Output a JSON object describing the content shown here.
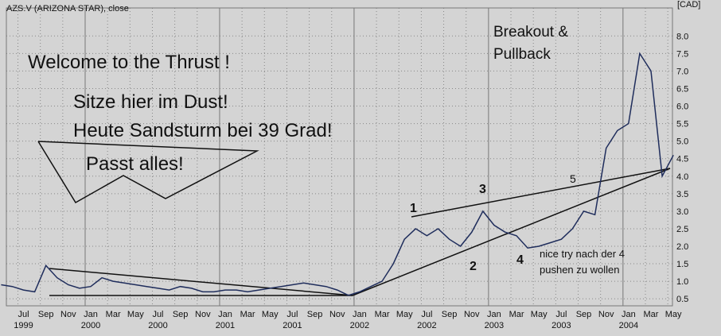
{
  "chart_data": {
    "type": "line",
    "title": "AZS.V (ARIZONA STAR), close",
    "unit_label": "[CAD]",
    "color": "#1f2d5c",
    "grid": true,
    "ylim": [
      0.3,
      8.8
    ],
    "yticks": [
      0.5,
      {
        "value": 1.0,
        "label": "1.0"
      },
      1.5,
      {
        "value": 2.0,
        "label": "2.0"
      },
      2.5,
      {
        "value": 3.0,
        "label": "3.0"
      },
      3.5,
      {
        "value": 4.0,
        "label": "4.0"
      },
      4.5,
      {
        "value": 5.0,
        "label": "5.0"
      },
      5.5,
      {
        "value": 6.0,
        "label": "6.0"
      },
      6.5,
      {
        "value": 7.0,
        "label": "7.0"
      },
      7.5,
      {
        "value": 8.0,
        "label": "8.0"
      }
    ],
    "xticks": [
      {
        "value": "1999-07",
        "label": "Jul"
      },
      {
        "value": "1999-09",
        "label": "Sep"
      },
      {
        "value": "1999-11",
        "label": "Nov"
      },
      {
        "value": "2000-01",
        "label": "Jan"
      },
      {
        "value": "2000-03",
        "label": "Mar"
      },
      {
        "value": "2000-05",
        "label": "May"
      },
      {
        "value": "2000-07",
        "label": "Jul"
      },
      {
        "value": "2000-09",
        "label": "Sep"
      },
      {
        "value": "2000-11",
        "label": "Nov"
      },
      {
        "value": "2001-01",
        "label": "Jan"
      },
      {
        "value": "2001-03",
        "label": "Mar"
      },
      {
        "value": "2001-05",
        "label": "May"
      },
      {
        "value": "2001-07",
        "label": "Jul"
      },
      {
        "value": "2001-09",
        "label": "Sep"
      },
      {
        "value": "2001-11",
        "label": "Nov"
      },
      {
        "value": "2002-01",
        "label": "Jan"
      },
      {
        "value": "2002-03",
        "label": "Mar"
      },
      {
        "value": "2002-05",
        "label": "May"
      },
      {
        "value": "2002-07",
        "label": "Jul"
      },
      {
        "value": "2002-09",
        "label": "Sep"
      },
      {
        "value": "2002-11",
        "label": "Nov"
      },
      {
        "value": "2003-01",
        "label": "Jan"
      },
      {
        "value": "2003-03",
        "label": "Mar"
      },
      {
        "value": "2003-05",
        "label": "May"
      },
      {
        "value": "2003-07",
        "label": "Jul"
      },
      {
        "value": "2003-09",
        "label": "Sep"
      },
      {
        "value": "2003-11",
        "label": "Nov"
      },
      {
        "value": "2004-01",
        "label": "Jan"
      },
      {
        "value": "2004-03",
        "label": "Mar"
      },
      {
        "value": "2004-05",
        "label": "May"
      }
    ],
    "year_labels": [
      {
        "value": "1999-07",
        "label": "1999"
      },
      {
        "value": "2000-01",
        "label": "2000"
      },
      {
        "value": "2000-07",
        "label": "2000"
      },
      {
        "value": "2001-01",
        "label": "2001"
      },
      {
        "value": "2001-07",
        "label": "2001"
      },
      {
        "value": "2002-01",
        "label": "2002"
      },
      {
        "value": "2002-07",
        "label": "2002"
      },
      {
        "value": "2003-01",
        "label": "2003"
      },
      {
        "value": "2003-07",
        "label": "2003"
      },
      {
        "value": "2004-01",
        "label": "2004"
      }
    ],
    "x": [
      "1999-05",
      "1999-06",
      "1999-07",
      "1999-08",
      "1999-09",
      "1999-10",
      "1999-11",
      "1999-12",
      "2000-01",
      "2000-02",
      "2000-03",
      "2000-04",
      "2000-05",
      "2000-06",
      "2000-07",
      "2000-08",
      "2000-09",
      "2000-10",
      "2000-11",
      "2000-12",
      "2001-01",
      "2001-02",
      "2001-03",
      "2001-04",
      "2001-05",
      "2001-06",
      "2001-07",
      "2001-08",
      "2001-09",
      "2001-10",
      "2001-11",
      "2001-12",
      "2002-01",
      "2002-02",
      "2002-03",
      "2002-04",
      "2002-05",
      "2002-06",
      "2002-07",
      "2002-08",
      "2002-09",
      "2002-10",
      "2002-11",
      "2002-12",
      "2003-01",
      "2003-02",
      "2003-03",
      "2003-04",
      "2003-05",
      "2003-06",
      "2003-07",
      "2003-08",
      "2003-09",
      "2003-10",
      "2003-11",
      "2003-12",
      "2004-01",
      "2004-02",
      "2004-03",
      "2004-04",
      "2004-05"
    ],
    "values": [
      0.9,
      0.85,
      0.75,
      0.7,
      1.45,
      1.1,
      0.9,
      0.8,
      0.85,
      1.1,
      1.0,
      0.95,
      0.9,
      0.85,
      0.8,
      0.75,
      0.85,
      0.8,
      0.7,
      0.7,
      0.75,
      0.75,
      0.7,
      0.75,
      0.8,
      0.85,
      0.9,
      0.95,
      0.9,
      0.85,
      0.75,
      0.6,
      0.7,
      0.85,
      1.0,
      1.5,
      2.2,
      2.5,
      2.3,
      2.5,
      2.2,
      2.0,
      2.4,
      3.0,
      2.6,
      2.4,
      2.3,
      1.95,
      2.0,
      2.1,
      2.2,
      2.5,
      3.0,
      2.9,
      4.8,
      5.3,
      5.5,
      7.5,
      7.0,
      4.0,
      4.6
    ],
    "annotations": [
      "Welcome to the Thrust !",
      "Sitze hier im Dust!",
      "Heute Sandsturm bei 39 Grad!",
      "Passt alles!",
      "Breakout &",
      "Pullback",
      "1",
      "2",
      "3",
      "4",
      "5",
      "nice try nach der 4",
      "pushen zu wollen"
    ]
  }
}
